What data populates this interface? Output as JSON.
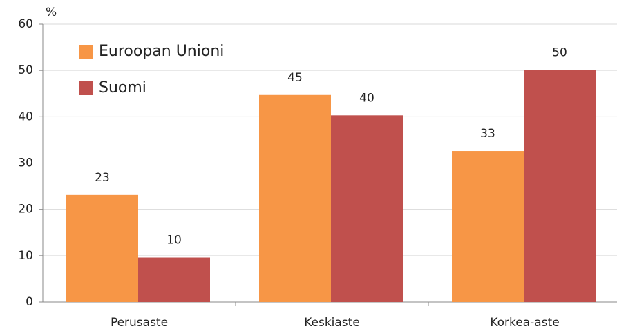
{
  "chart_data": {
    "type": "bar",
    "y_unit": "%",
    "categories": [
      "Perusaste",
      "Keskiaste",
      "Korkea-aste"
    ],
    "series": [
      {
        "name": "Euroopan Unioni",
        "color": "#f79646",
        "values": [
          23.1,
          44.7,
          32.6
        ],
        "value_labels": [
          "23",
          "45",
          "33"
        ]
      },
      {
        "name": "Suomi",
        "color": "#c0504d",
        "values": [
          9.6,
          40.3,
          50.1
        ],
        "value_labels": [
          "10",
          "40",
          "50"
        ]
      }
    ],
    "ylim": [
      0,
      60
    ],
    "yticks": [
      0,
      10,
      20,
      30,
      40,
      50,
      60
    ],
    "grid": true,
    "legend": "upper left"
  }
}
